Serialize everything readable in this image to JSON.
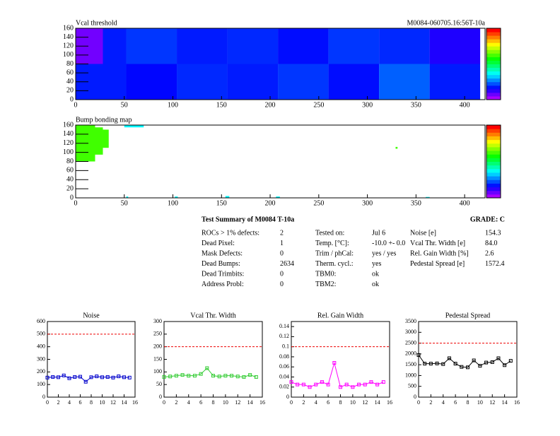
{
  "chart_data": [
    {
      "type": "heatmap",
      "title": "Vcal threshold",
      "subtitle": "M0084-060705.16:56T-10a",
      "xlim": [
        0,
        421
      ],
      "ylim": [
        0,
        160
      ],
      "zlim": [
        80,
        250
      ],
      "xticks": [
        0,
        50,
        100,
        150,
        200,
        250,
        300,
        350,
        400
      ],
      "yticks": [
        0,
        20,
        40,
        60,
        80,
        100,
        120,
        140,
        160
      ],
      "cells": [
        {
          "x": [
            0,
            28
          ],
          "y": [
            80,
            160
          ],
          "value": 88
        },
        {
          "x": [
            28,
            52
          ],
          "y": [
            80,
            160
          ],
          "value": 108
        },
        {
          "x": [
            52,
            104
          ],
          "y": [
            80,
            160
          ],
          "value": 112
        },
        {
          "x": [
            104,
            156
          ],
          "y": [
            80,
            160
          ],
          "value": 108
        },
        {
          "x": [
            156,
            208
          ],
          "y": [
            80,
            160
          ],
          "value": 110
        },
        {
          "x": [
            208,
            260
          ],
          "y": [
            80,
            160
          ],
          "value": 106
        },
        {
          "x": [
            260,
            312
          ],
          "y": [
            80,
            160
          ],
          "value": 112
        },
        {
          "x": [
            312,
            364
          ],
          "y": [
            80,
            160
          ],
          "value": 110
        },
        {
          "x": [
            364,
            416
          ],
          "y": [
            80,
            160
          ],
          "value": 100
        },
        {
          "x": [
            0,
            52
          ],
          "y": [
            0,
            80
          ],
          "value": 108
        },
        {
          "x": [
            52,
            104
          ],
          "y": [
            0,
            80
          ],
          "value": 105
        },
        {
          "x": [
            104,
            156
          ],
          "y": [
            0,
            80
          ],
          "value": 110
        },
        {
          "x": [
            156,
            208
          ],
          "y": [
            0,
            80
          ],
          "value": 108
        },
        {
          "x": [
            208,
            260
          ],
          "y": [
            0,
            80
          ],
          "value": 112
        },
        {
          "x": [
            260,
            312
          ],
          "y": [
            0,
            80
          ],
          "value": 106
        },
        {
          "x": [
            312,
            364
          ],
          "y": [
            0,
            80
          ],
          "value": 118
        },
        {
          "x": [
            364,
            416
          ],
          "y": [
            0,
            80
          ],
          "value": 108
        }
      ]
    },
    {
      "type": "heatmap",
      "title": "Bump bonding map",
      "xlim": [
        0,
        421
      ],
      "ylim": [
        0,
        160
      ],
      "zlim": [
        -2,
        2
      ],
      "xticks": [
        0,
        50,
        100,
        150,
        200,
        250,
        300,
        350,
        400
      ],
      "yticks": [
        0,
        20,
        40,
        60,
        80,
        100,
        120,
        140,
        160
      ],
      "cells": [
        {
          "x": [
            0,
            20
          ],
          "y": [
            80,
            160
          ],
          "value": 0.5
        },
        {
          "x": [
            20,
            28
          ],
          "y": [
            95,
            155
          ],
          "value": 0.5
        },
        {
          "x": [
            28,
            34
          ],
          "y": [
            110,
            150
          ],
          "value": 0.5
        },
        {
          "x": [
            50,
            70
          ],
          "y": [
            155,
            160
          ],
          "value": -0.6
        },
        {
          "x": [
            52,
            54
          ],
          "y": [
            0,
            3
          ],
          "value": -0.6
        },
        {
          "x": [
            102,
            105
          ],
          "y": [
            0,
            3
          ],
          "value": -0.6
        },
        {
          "x": [
            154,
            158
          ],
          "y": [
            0,
            4
          ],
          "value": -0.6
        },
        {
          "x": [
            206,
            210
          ],
          "y": [
            0,
            3
          ],
          "value": -0.6
        },
        {
          "x": [
            329,
            331
          ],
          "y": [
            108,
            112
          ],
          "value": 0.5
        },
        {
          "x": [
            360,
            364
          ],
          "y": [
            0,
            2
          ],
          "value": -0.6
        }
      ]
    },
    {
      "type": "line",
      "title": "Noise",
      "color": "#0000cc",
      "reference": 500,
      "x": [
        0,
        1,
        2,
        3,
        4,
        5,
        6,
        7,
        8,
        9,
        10,
        11,
        12,
        13,
        14,
        15
      ],
      "values": [
        155,
        160,
        158,
        172,
        150,
        160,
        162,
        122,
        158,
        165,
        158,
        160,
        155,
        165,
        158,
        155
      ],
      "xlim": [
        0,
        16
      ],
      "xticks": [
        0,
        2,
        4,
        6,
        8,
        10,
        12,
        14,
        16
      ],
      "ylim": [
        0,
        600
      ],
      "yticks": [
        0,
        100,
        200,
        300,
        400,
        500,
        600
      ]
    },
    {
      "type": "line",
      "title": "Vcal Thr. Width",
      "color": "#33cc33",
      "reference": 200,
      "x": [
        0,
        1,
        2,
        3,
        4,
        5,
        6,
        7,
        8,
        9,
        10,
        11,
        12,
        13,
        14,
        15
      ],
      "values": [
        80,
        82,
        85,
        88,
        85,
        85,
        92,
        115,
        85,
        82,
        85,
        85,
        82,
        80,
        88,
        80
      ],
      "xlim": [
        0,
        16
      ],
      "xticks": [
        0,
        2,
        4,
        6,
        8,
        10,
        12,
        14,
        16
      ],
      "ylim": [
        0,
        300
      ],
      "yticks": [
        0,
        50,
        100,
        150,
        200,
        250,
        300
      ]
    },
    {
      "type": "line",
      "title": "Rel. Gain Width",
      "color": "#ff00ff",
      "reference": 0.1,
      "x": [
        0,
        1,
        2,
        3,
        4,
        5,
        6,
        7,
        8,
        9,
        10,
        11,
        12,
        13,
        14,
        15
      ],
      "values": [
        0.03,
        0.025,
        0.025,
        0.02,
        0.025,
        0.03,
        0.025,
        0.068,
        0.02,
        0.025,
        0.02,
        0.025,
        0.025,
        0.03,
        0.025,
        0.03
      ],
      "xlim": [
        0,
        16
      ],
      "xticks": [
        0,
        2,
        4,
        6,
        8,
        10,
        12,
        14,
        16
      ],
      "ylim": [
        0,
        0.15
      ],
      "yticks": [
        0,
        0.02,
        0.04,
        0.06,
        0.08,
        0.1,
        0.12,
        0.14
      ]
    },
    {
      "type": "line",
      "title": "Pedestal Spread",
      "color": "#000000",
      "reference": 2500,
      "x": [
        0,
        1,
        2,
        3,
        4,
        5,
        6,
        7,
        8,
        9,
        10,
        11,
        12,
        13,
        14,
        15
      ],
      "values": [
        1950,
        1550,
        1550,
        1560,
        1530,
        1800,
        1550,
        1400,
        1380,
        1700,
        1450,
        1600,
        1620,
        1800,
        1480,
        1680
      ],
      "xlim": [
        0,
        16
      ],
      "xticks": [
        0,
        2,
        4,
        6,
        8,
        10,
        12,
        14,
        16
      ],
      "ylim": [
        0,
        3500
      ],
      "yticks": [
        0,
        500,
        1000,
        1500,
        2000,
        2500,
        3000,
        3500
      ]
    }
  ],
  "summary": {
    "title": "Test Summary of M0084    T-10a",
    "grade": "GRADE:  C",
    "columns": [
      [
        [
          "ROCs > 1% defects:",
          "2"
        ],
        [
          "Dead Pixel:",
          "1"
        ],
        [
          "Mask Defects:",
          "0"
        ],
        [
          "Dead Bumps:",
          "2634"
        ],
        [
          "Dead Trimbits:",
          "0"
        ],
        [
          "Address Probl:",
          "0"
        ]
      ],
      [
        [
          "Tested on:",
          "Jul 6"
        ],
        [
          "Temp. [°C]:",
          "-10.0 +- 0.0"
        ],
        [
          "Trim / phCal:",
          "yes / yes"
        ],
        [
          "Therm. cycl.:",
          "yes"
        ],
        [
          "TBM0:",
          "ok"
        ],
        [
          "TBM2:",
          "ok"
        ]
      ],
      [
        [
          "Noise [e]",
          "154.3"
        ],
        [
          "Vcal Thr. Width [e]",
          "84.0"
        ],
        [
          "Rel. Gain Width [%]",
          "2.6"
        ],
        [
          "Pedestal Spread [e]",
          "1572.4"
        ]
      ]
    ]
  }
}
